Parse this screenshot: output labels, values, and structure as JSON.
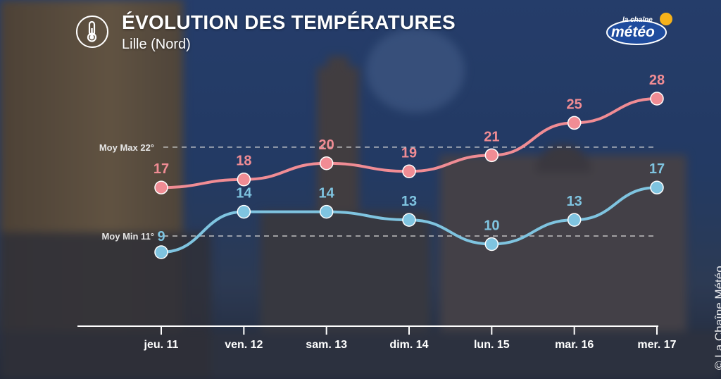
{
  "header": {
    "title": "ÉVOLUTION DES TEMPÉRATURES",
    "subtitle": "Lille (Nord)",
    "icon": "thermometer-icon"
  },
  "logo": {
    "top": "la chaîne",
    "main": "météo"
  },
  "credit": "© La Chaîne Météo",
  "colors": {
    "max": "#f08c94",
    "min": "#7fc4e0",
    "axis": "#ffffff",
    "reference": "#d8d8d8"
  },
  "chart_data": {
    "type": "line",
    "title": "ÉVOLUTION DES TEMPÉRATURES",
    "subtitle": "Lille (Nord)",
    "categories": [
      "jeu. 11",
      "ven. 12",
      "sam. 13",
      "dim. 14",
      "lun. 15",
      "mar. 16",
      "mer. 17"
    ],
    "series": [
      {
        "key": "max",
        "values": [
          17,
          18,
          20,
          19,
          21,
          25,
          28
        ]
      },
      {
        "key": "min",
        "values": [
          9,
          14,
          14,
          13,
          10,
          13,
          17
        ]
      }
    ],
    "reference_lines": [
      {
        "label": "Moy Max 22°",
        "value": 22
      },
      {
        "label": "Moy Min 11°",
        "value": 11
      }
    ],
    "ylim": [
      6,
      30
    ],
    "grid": false,
    "legend": "none",
    "xlabel": "",
    "ylabel": ""
  }
}
